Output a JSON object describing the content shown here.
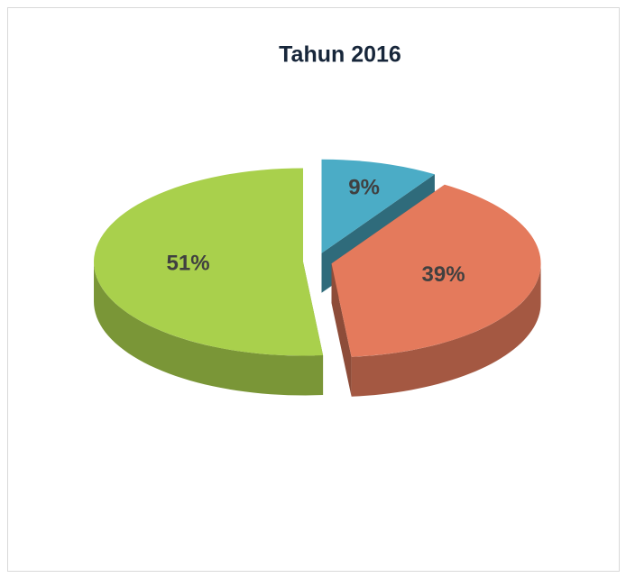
{
  "chart_data": {
    "type": "pie",
    "title": "Tahun 2016",
    "values": [
      9,
      39,
      51
    ],
    "value_labels": [
      "9%",
      "39%",
      "51%"
    ],
    "colors": [
      "#4bacc6",
      "#e47a5c",
      "#a9d04c"
    ]
  }
}
